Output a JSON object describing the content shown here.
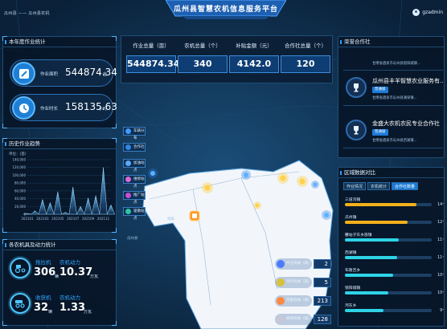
{
  "header": {
    "logo_text": "瓜州县 ——",
    "logo_sub": "瓜州县农机",
    "title": "瓜州县智慧农机信息服务平台",
    "user": "gzadmin"
  },
  "annual": {
    "title": "本年度作业统计",
    "area_label": "作业面积",
    "area_value": "544874.34",
    "area_unit": "亩",
    "hours_label": "作业时长",
    "hours_value": "158135.63",
    "hours_unit": "小时"
  },
  "history": {
    "title": "历史作业趋势",
    "unit_label": "单位：(亩)"
  },
  "chart_data": {
    "type": "area",
    "title": "历史作业趋势",
    "ylabel": "单位：(亩)",
    "categories": [
      "202101",
      "202103",
      "202105",
      "202107",
      "202109",
      "202111"
    ],
    "x": [
      "202101",
      "202102",
      "202103",
      "202104",
      "202105",
      "202106",
      "202107",
      "202108",
      "202109",
      "202110",
      "202111",
      "202112"
    ],
    "values": [
      2000,
      9000,
      38000,
      30000,
      58000,
      5000,
      70000,
      20000,
      42000,
      48000,
      120000,
      24000
    ],
    "ylim": [
      0,
      140000
    ],
    "yticks": [
      "0",
      "20,000",
      "40,000",
      "60,000",
      "80,000",
      "100,000",
      "120,000",
      "140,000"
    ]
  },
  "machines": {
    "title": "各农机具及动力统计",
    "rows": [
      {
        "name": "拖拉机",
        "count": "306",
        "count_unit": "辆",
        "power_label": "农机动力",
        "power": "10.37",
        "power_unit": "万瓦"
      },
      {
        "name": "收获机",
        "count": "32",
        "count_unit": "辆",
        "power_label": "农机动力",
        "power": "1.33",
        "power_unit": "万瓦"
      }
    ]
  },
  "kpis": [
    {
      "label": "作业总量（亩）",
      "value": "544874.34"
    },
    {
      "label": "农机总量（个）",
      "value": "340"
    },
    {
      "label": "补贴金额（元）",
      "value": "4142.0"
    },
    {
      "label": "合作社总量（个）",
      "value": "120"
    }
  ],
  "map_legend": [
    {
      "label": "车辆分布",
      "color": "#3f9cff"
    },
    {
      "label": "合作社",
      "color": "#2f86e6"
    },
    {
      "label": "加油站点",
      "color": "#5aa7ff"
    },
    {
      "label": "维修站点",
      "color": "#d86ad8"
    },
    {
      "label": "推广站点",
      "color": "#c64fd3"
    },
    {
      "label": "驱散站点",
      "color": "#2dc5a0"
    }
  ],
  "map_counts": [
    {
      "label": "作业机械（辆）",
      "value": "2",
      "color": "#4a7cff"
    },
    {
      "label": "待作机械（辆）",
      "value": "5",
      "color": "#d9c13b"
    },
    {
      "label": "闲置机械（辆）",
      "value": "213",
      "color": "#ff8a3d"
    },
    {
      "label": "故障机械（辆）",
      "value": "128",
      "color": "#c7c7d8"
    }
  ],
  "map_labels": [
    "酒泉",
    "瓜州县"
  ],
  "coops": {
    "title": "荣誉合作社",
    "items": [
      {
        "name": "",
        "tag": "",
        "addr": "甘肃省酒泉市瓜州县锁阳城镇..."
      },
      {
        "name": "瓜州县丰羊智慧农业服务有...",
        "tag": "普通级",
        "addr": "甘肃省酒泉市瓜州县渊泉镇..."
      },
      {
        "name": "金盛大农机农民专业合作社",
        "tag": "普通级",
        "addr": "甘肃省酒泉市瓜州县西湖镇..."
      }
    ]
  },
  "region": {
    "title": "区域数据对比",
    "tabs": [
      "作业情况",
      "农机统计",
      "合作社数量"
    ],
    "active_tab": 2,
    "rows": [
      {
        "name": "三道沟镇",
        "value": "14个",
        "pct": 0.82,
        "color": "#f2b01a"
      },
      {
        "name": "瓜州镇",
        "value": "12个",
        "pct": 0.72,
        "color": "#f2b01a"
      },
      {
        "name": "腰站子东乡族镇",
        "value": "11个",
        "pct": 0.62,
        "color": "#2ed3e6"
      },
      {
        "name": "西湖镇",
        "value": "11个",
        "pct": 0.6,
        "color": "#2ed3e6"
      },
      {
        "name": "布隆吉乡",
        "value": "10个",
        "pct": 0.56,
        "color": "#2ed3e6"
      },
      {
        "name": "锁阳城镇",
        "value": "10个",
        "pct": 0.5,
        "color": "#2ed3e6"
      },
      {
        "name": "河东乡",
        "value": "9个",
        "pct": 0.44,
        "color": "#2ed3e6"
      }
    ]
  }
}
